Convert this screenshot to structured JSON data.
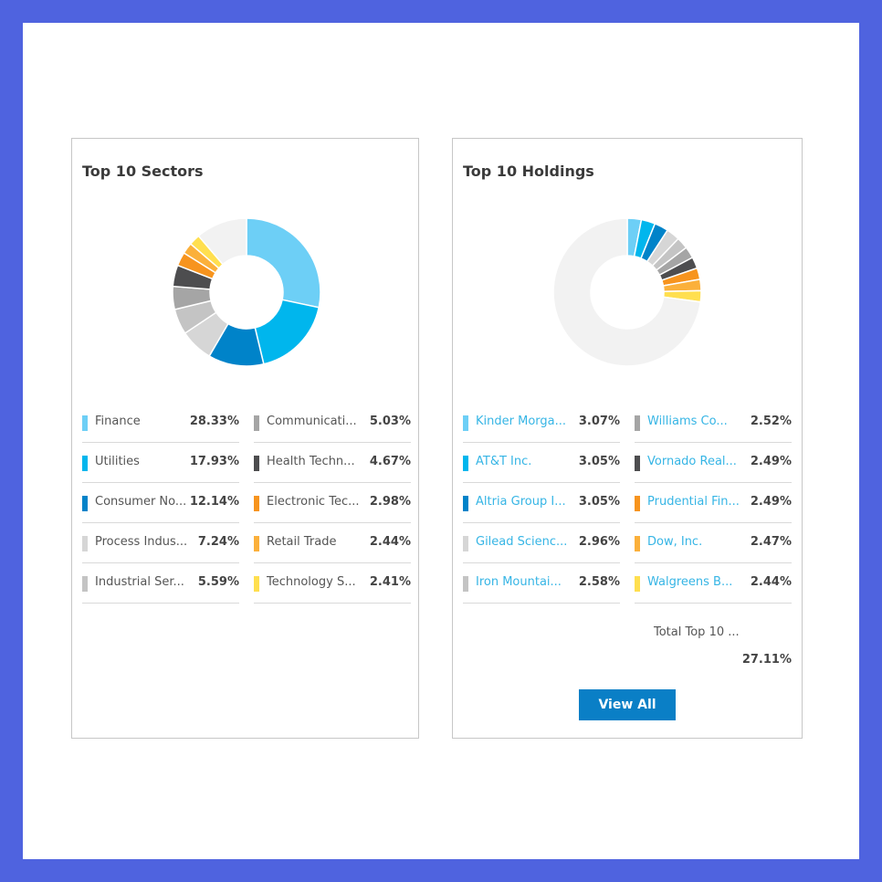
{
  "sectors": {
    "title": "Top 10 Sectors",
    "items": [
      {
        "label": "Finance",
        "value": "28.33%",
        "color": "#6dcff6"
      },
      {
        "label": "Utilities",
        "value": "17.93%",
        "color": "#00b6ed"
      },
      {
        "label": "Consumer No...",
        "value": "12.14%",
        "color": "#0083c9"
      },
      {
        "label": "Process Indus...",
        "value": "7.24%",
        "color": "#d6d6d6"
      },
      {
        "label": "Industrial Ser...",
        "value": "5.59%",
        "color": "#c4c4c4"
      },
      {
        "label": "Communicati...",
        "value": "5.03%",
        "color": "#a5a5a5"
      },
      {
        "label": "Health Techn...",
        "value": "4.67%",
        "color": "#4d4d4f"
      },
      {
        "label": "Electronic Tec...",
        "value": "2.98%",
        "color": "#f7941e"
      },
      {
        "label": "Retail Trade",
        "value": "2.44%",
        "color": "#fbb03b"
      },
      {
        "label": "Technology S...",
        "value": "2.41%",
        "color": "#ffdf4f"
      }
    ]
  },
  "holdings": {
    "title": "Top 10 Holdings",
    "items": [
      {
        "label": "Kinder Morga...",
        "value": "3.07%",
        "color": "#6dcff6"
      },
      {
        "label": "AT&T Inc.",
        "value": "3.05%",
        "color": "#00b6ed"
      },
      {
        "label": "Altria Group I...",
        "value": "3.05%",
        "color": "#0083c9"
      },
      {
        "label": "Gilead Scienc...",
        "value": "2.96%",
        "color": "#d6d6d6"
      },
      {
        "label": "Iron Mountai...",
        "value": "2.58%",
        "color": "#c4c4c4"
      },
      {
        "label": "Williams Co...",
        "value": "2.52%",
        "color": "#a5a5a5"
      },
      {
        "label": "Vornado Real...",
        "value": "2.49%",
        "color": "#4d4d4f"
      },
      {
        "label": "Prudential Fin...",
        "value": "2.49%",
        "color": "#f7941e"
      },
      {
        "label": "Dow, Inc.",
        "value": "2.47%",
        "color": "#fbb03b"
      },
      {
        "label": "Walgreens B...",
        "value": "2.44%",
        "color": "#ffdf4f"
      }
    ],
    "total_label": "Total Top 10 ...",
    "total_value": "27.11%",
    "view_all": "View All"
  },
  "chart_data": [
    {
      "type": "pie",
      "title": "Top 10 Sectors",
      "categories": [
        "Finance",
        "Utilities",
        "Consumer No...",
        "Process Indus...",
        "Industrial Ser...",
        "Communicati...",
        "Health Techn...",
        "Electronic Tec...",
        "Retail Trade",
        "Technology S..."
      ],
      "values": [
        28.33,
        17.93,
        12.14,
        7.24,
        5.59,
        5.03,
        4.67,
        2.98,
        2.44,
        2.41
      ],
      "remainder_color": "#f2f2f2"
    },
    {
      "type": "pie",
      "title": "Top 10 Holdings",
      "categories": [
        "Kinder Morga...",
        "AT&T Inc.",
        "Altria Group I...",
        "Gilead Scienc...",
        "Iron Mountai...",
        "Williams Co...",
        "Vornado Real...",
        "Prudential Fin...",
        "Dow, Inc.",
        "Walgreens B..."
      ],
      "values": [
        3.07,
        3.05,
        3.05,
        2.96,
        2.58,
        2.52,
        2.49,
        2.49,
        2.47,
        2.44
      ],
      "remainder_color": "#f2f2f2"
    }
  ]
}
